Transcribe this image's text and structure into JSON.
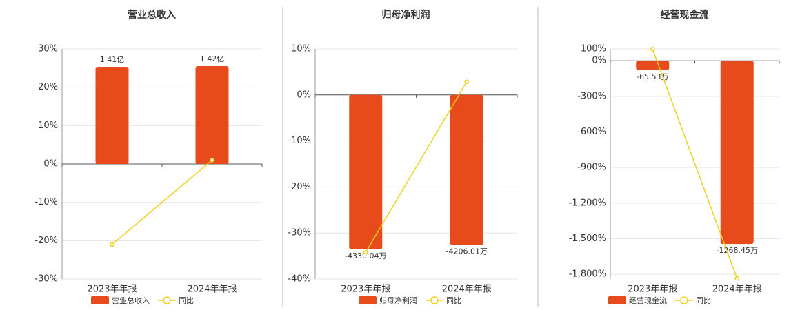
{
  "chart_data": [
    {
      "type": "bar",
      "title": "营业总收入",
      "categories": [
        "2023年年报",
        "2024年年报"
      ],
      "ylim": [
        -30,
        30
      ],
      "yticks": [
        {
          "value": 30,
          "label": "30%"
        },
        {
          "value": 20,
          "label": "20%"
        },
        {
          "value": 10,
          "label": "10%"
        },
        {
          "value": 0,
          "label": "0%"
        },
        {
          "value": -10,
          "label": "-10%"
        },
        {
          "value": -20,
          "label": "-20%"
        },
        {
          "value": -30,
          "label": "-30%"
        }
      ],
      "y2lim": [
        -1.67,
        1.67
      ],
      "grid": true,
      "series": [
        {
          "name": "营业总收入",
          "type": "bar",
          "axis": "y2",
          "color": "#e84b1b",
          "values": [
            1.41,
            1.42
          ],
          "value_labels": [
            "1.41亿",
            "1.42亿"
          ]
        },
        {
          "name": "同比",
          "type": "line",
          "color": "#f0d01e",
          "values": [
            -21.0,
            1.0
          ]
        }
      ]
    },
    {
      "type": "bar",
      "title": "归母净利润",
      "categories": [
        "2023年年报",
        "2024年年报"
      ],
      "ylim": [
        -40,
        10
      ],
      "yticks": [
        {
          "value": 10,
          "label": "10%"
        },
        {
          "value": 0,
          "label": "0%"
        },
        {
          "value": -10,
          "label": "-10%"
        },
        {
          "value": -20,
          "label": "-20%"
        },
        {
          "value": -30,
          "label": "-30%"
        },
        {
          "value": -40,
          "label": "-40%"
        }
      ],
      "y2lim": [
        -5160,
        1290
      ],
      "grid": true,
      "series": [
        {
          "name": "归母净利润",
          "type": "bar",
          "axis": "y2",
          "color": "#e84b1b",
          "values": [
            -4330.04,
            -4206.01
          ],
          "value_labels": [
            "-4330.04万",
            "-4206.01万"
          ]
        },
        {
          "name": "同比",
          "type": "line",
          "color": "#f0d01e",
          "values": [
            -34.2,
            2.86
          ]
        }
      ]
    },
    {
      "type": "bar",
      "title": "经营现金流",
      "categories": [
        "2023年年报",
        "2024年年报"
      ],
      "ylim": [
        -1840,
        100
      ],
      "yticks": [
        {
          "value": 100,
          "label": "100%"
        },
        {
          "value": 0,
          "label": "0%"
        },
        {
          "value": -300,
          "label": "-300%"
        },
        {
          "value": -600,
          "label": "-600%"
        },
        {
          "value": -900,
          "label": "-900%"
        },
        {
          "value": -1200,
          "label": "-1,200%"
        },
        {
          "value": -1500,
          "label": "-1,500%"
        },
        {
          "value": -1800,
          "label": "-1,800%"
        }
      ],
      "y2lim": [
        -1511,
        82
      ],
      "grid": true,
      "series": [
        {
          "name": "经营现金流",
          "type": "bar",
          "axis": "y2",
          "color": "#e84b1b",
          "values": [
            -65.53,
            -1268.45
          ],
          "value_labels": [
            "-65.53万",
            "-1268.45万"
          ]
        },
        {
          "name": "同比",
          "type": "line",
          "color": "#f0d01e",
          "values": [
            98,
            -1835.7
          ]
        }
      ]
    }
  ]
}
